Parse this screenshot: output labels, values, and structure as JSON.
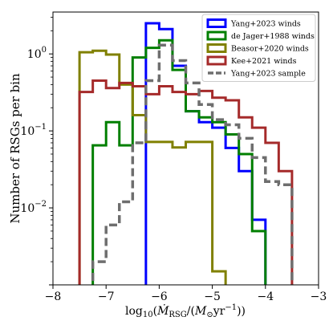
{
  "chart_data": {
    "type": "histogram-step",
    "xlabel": "log10(Ṁ_RSG/(M_⊙yr^-1))",
    "ylabel": "Number of RSGs per bin",
    "xlim": [
      -8,
      -3
    ],
    "ylim": [
      0.001,
      3.5
    ],
    "yscale": "log",
    "x_ticks": [
      {
        "value": -8,
        "label": "−8"
      },
      {
        "value": -7,
        "label": "−7"
      },
      {
        "value": -6,
        "label": "−6"
      },
      {
        "value": -5,
        "label": "−5"
      },
      {
        "value": -4,
        "label": "−4"
      },
      {
        "value": -3,
        "label": "−3"
      }
    ],
    "y_ticks": [
      {
        "value": 0.01,
        "base": "10",
        "exp": "−2"
      },
      {
        "value": 0.1,
        "base": "10",
        "exp": "−1"
      },
      {
        "value": 1,
        "base": "10",
        "exp": "0"
      }
    ],
    "legend_position": "top-right",
    "series": [
      {
        "name": "Yang+2023 winds",
        "color": "#0000ff",
        "dashed": false,
        "bin_edges": [
          -6.25,
          -6.0,
          -5.75,
          -5.5,
          -5.25,
          -5.0,
          -4.75,
          -4.5,
          -4.25,
          -4.0
        ],
        "values": [
          2.5,
          2.1,
          0.7,
          0.18,
          0.13,
          0.11,
          0.06,
          0.03,
          0.007
        ]
      },
      {
        "name": "de Jager+1988 winds",
        "color": "#007f00",
        "dashed": false,
        "bin_edges": [
          -7.25,
          -7.0,
          -6.75,
          -6.5,
          -6.25,
          -6.0,
          -5.75,
          -5.5,
          -5.25,
          -5.0,
          -4.75,
          -4.5,
          -4.25,
          -4.0
        ],
        "values": [
          0.065,
          0.13,
          0.065,
          0.9,
          1.2,
          1.5,
          0.62,
          0.18,
          0.15,
          0.13,
          0.09,
          0.05,
          0.005
        ]
      },
      {
        "name": "Beasor+2020 winds",
        "color": "#808000",
        "dashed": false,
        "bin_edges": [
          -7.5,
          -7.25,
          -7.0,
          -6.75,
          -6.5,
          -6.25,
          -6.0,
          -5.75,
          -5.5,
          -5.25,
          -5.0,
          -4.75
        ],
        "values": [
          1.05,
          1.1,
          0.98,
          0.4,
          0.16,
          0.072,
          0.072,
          0.061,
          0.072,
          0.072,
          0.0015
        ]
      },
      {
        "name": "Kee+2021 winds",
        "color": "#a52a2a",
        "dashed": false,
        "bin_edges": [
          -7.5,
          -7.25,
          -7.0,
          -6.75,
          -6.5,
          -6.25,
          -6.0,
          -5.75,
          -5.5,
          -5.25,
          -5.0,
          -4.75,
          -4.5,
          -4.25,
          -4.0,
          -3.75,
          -3.5
        ],
        "values": [
          0.32,
          0.45,
          0.36,
          0.42,
          0.38,
          0.3,
          0.38,
          0.32,
          0.3,
          0.33,
          0.27,
          0.25,
          0.15,
          0.11,
          0.07,
          0.03
        ]
      },
      {
        "name": "Yang+2023 sample",
        "color": "#6e6e6e",
        "dashed": true,
        "bin_edges": [
          -7.25,
          -7.0,
          -6.75,
          -6.5,
          -6.25,
          -6.0,
          -5.75,
          -5.5,
          -5.25,
          -5.0,
          -4.75,
          -4.5,
          -4.25,
          -4.0,
          -3.75,
          -3.5
        ],
        "values": [
          0.002,
          0.006,
          0.012,
          0.07,
          0.45,
          1.3,
          0.82,
          0.42,
          0.22,
          0.14,
          0.12,
          0.08,
          0.045,
          0.022,
          0.02
        ]
      }
    ]
  }
}
